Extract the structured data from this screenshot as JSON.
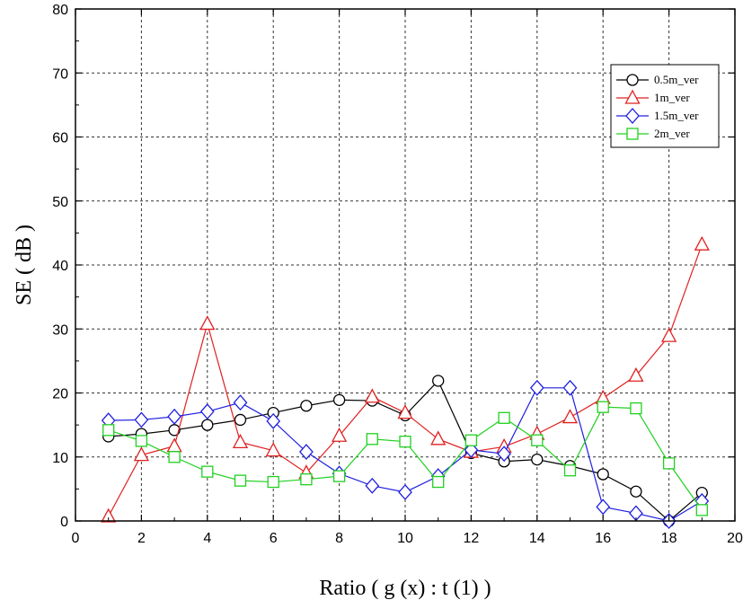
{
  "chart_data": {
    "type": "line",
    "xlabel": "Ratio ( g (x) : t (1) )",
    "ylabel": "SE ( dB )",
    "xlim": [
      0,
      20
    ],
    "ylim": [
      0,
      80
    ],
    "xticks": [
      0,
      2,
      4,
      6,
      8,
      10,
      12,
      14,
      16,
      18,
      20
    ],
    "yticks": [
      0,
      10,
      20,
      30,
      40,
      50,
      60,
      70,
      80
    ],
    "grid": true,
    "grid_style": "dashed",
    "legend_position": "top-right",
    "x": [
      1,
      2,
      3,
      4,
      5,
      6,
      7,
      8,
      9,
      10,
      11,
      12,
      13,
      14,
      15,
      16,
      17,
      18,
      19
    ],
    "series": [
      {
        "name": "0.5m_ver",
        "color": "#000000",
        "marker": "circle",
        "values": [
          13.2,
          13.6,
          14.2,
          15.0,
          15.8,
          16.9,
          18.0,
          18.9,
          18.8,
          16.5,
          21.9,
          10.6,
          9.3,
          9.6,
          8.6,
          7.3,
          4.6,
          0.0,
          4.4
        ]
      },
      {
        "name": "1m_ver",
        "color": "#e02020",
        "marker": "triangle",
        "values": [
          0.7,
          10.3,
          11.7,
          30.8,
          12.3,
          11.0,
          7.5,
          13.3,
          19.4,
          16.9,
          12.8,
          10.8,
          11.6,
          13.6,
          16.2,
          19.2,
          22.7,
          28.9,
          43.2
        ]
      },
      {
        "name": "1.5m_ver",
        "color": "#2020e0",
        "marker": "diamond",
        "values": [
          15.7,
          15.8,
          16.3,
          17.1,
          18.5,
          15.6,
          10.8,
          7.4,
          5.5,
          4.5,
          7.0,
          11.1,
          10.5,
          20.8,
          20.8,
          2.2,
          1.2,
          0.0,
          3.1
        ]
      },
      {
        "name": "2m_ver",
        "color": "#20d020",
        "marker": "square",
        "values": [
          14.2,
          12.5,
          10.0,
          7.7,
          6.3,
          6.1,
          6.5,
          7.0,
          12.8,
          12.4,
          6.1,
          12.6,
          16.1,
          12.6,
          7.9,
          17.8,
          17.6,
          9.0,
          1.7
        ]
      }
    ]
  }
}
